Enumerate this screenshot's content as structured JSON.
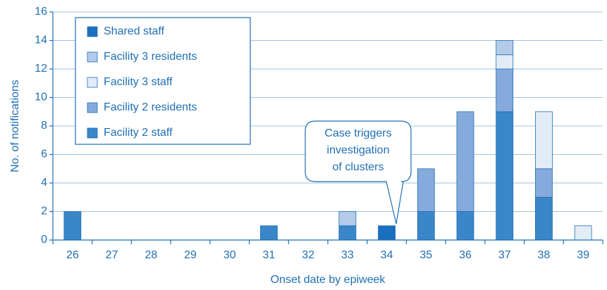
{
  "chart_data": {
    "type": "stacked_bar",
    "xlabel": "Onset date by epiweek",
    "ylabel": "No. of notifications",
    "categories": [
      "26",
      "27",
      "28",
      "29",
      "30",
      "31",
      "32",
      "33",
      "34",
      "35",
      "36",
      "37",
      "38",
      "39"
    ],
    "series": [
      {
        "name": "Shared staff",
        "color": "#1a6fbe",
        "values": [
          0,
          0,
          0,
          0,
          0,
          0,
          0,
          0,
          1,
          0,
          0,
          0,
          0,
          0
        ]
      },
      {
        "name": "Facility 3 residents",
        "color": "#b3cbe9",
        "values": [
          0,
          0,
          0,
          0,
          0,
          0,
          0,
          1,
          0,
          0,
          0,
          1,
          0,
          0
        ]
      },
      {
        "name": "Facility 3 staff",
        "color": "#e2ecf7",
        "values": [
          0,
          0,
          0,
          0,
          0,
          0,
          0,
          0,
          0,
          0,
          0,
          1,
          4,
          1
        ]
      },
      {
        "name": "Facility 2 residents",
        "color": "#86aadb",
        "values": [
          0,
          0,
          0,
          0,
          0,
          0,
          0,
          0,
          0,
          3,
          7,
          3,
          2,
          0
        ]
      },
      {
        "name": "Facility 2 staff",
        "color": "#3a86c8",
        "values": [
          2,
          0,
          0,
          0,
          0,
          1,
          0,
          1,
          0,
          2,
          2,
          9,
          3,
          0
        ]
      }
    ],
    "ylim": [
      0,
      16
    ],
    "yticks": [
      0,
      2,
      4,
      6,
      8,
      10,
      12,
      14,
      16
    ],
    "grid": true,
    "annotation": [
      "Case triggers",
      "investigation",
      "of clusters"
    ]
  }
}
